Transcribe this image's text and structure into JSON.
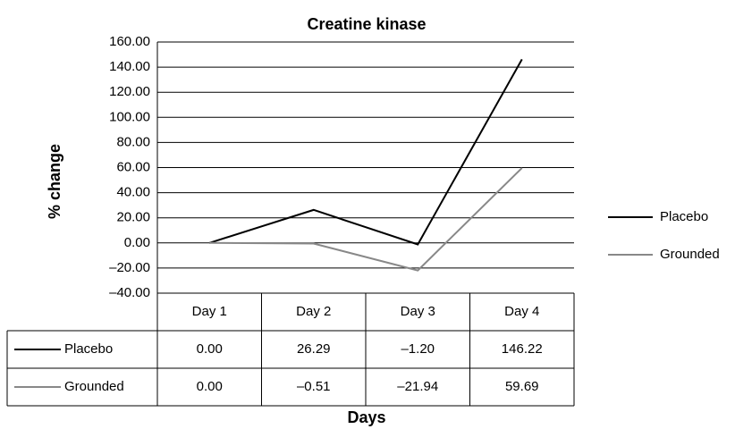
{
  "chart_data": {
    "type": "line",
    "title": "Creatine kinase",
    "x_label": "Days",
    "y_label": "% change",
    "categories": [
      "Day 1",
      "Day 2",
      "Day 3",
      "Day 4"
    ],
    "series": [
      {
        "name": "Placebo",
        "color": "#000000",
        "values": [
          0,
          26.29,
          -1.2,
          146.22
        ],
        "value_labels": [
          "0.00",
          "26.29",
          "–1.20",
          "146.22"
        ]
      },
      {
        "name": "Grounded",
        "color": "#888888",
        "values": [
          0,
          -0.51,
          -21.94,
          59.69
        ],
        "value_labels": [
          "0.00",
          "–0.51",
          "–21.94",
          "59.69"
        ]
      }
    ],
    "ylim": [
      -40,
      160
    ],
    "yticks": [
      {
        "value": -40,
        "label": "–40.00"
      },
      {
        "value": -20,
        "label": "–20.00"
      },
      {
        "value": 0,
        "label": "0.00"
      },
      {
        "value": 20,
        "label": "20.00"
      },
      {
        "value": 40,
        "label": "40.00"
      },
      {
        "value": 60,
        "label": "60.00"
      },
      {
        "value": 80,
        "label": "80.00"
      },
      {
        "value": 100,
        "label": "100.00"
      },
      {
        "value": 120,
        "label": "120.00"
      },
      {
        "value": 140,
        "label": "140.00"
      },
      {
        "value": 160,
        "label": "160.00"
      }
    ],
    "grid": true,
    "legend": "right"
  }
}
